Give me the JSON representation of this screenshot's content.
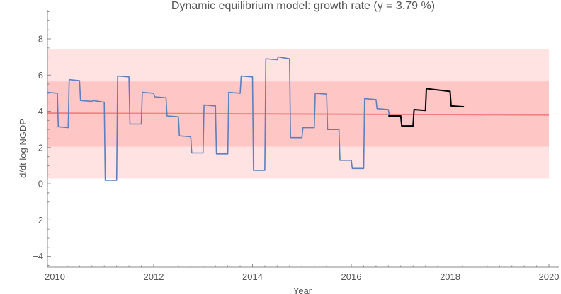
{
  "chart_data": {
    "type": "line",
    "title": "Dynamic equilibrium model: growth rate (γ = 3.79 %)",
    "xlabel": "Year",
    "ylabel": "d/dt log NGDP",
    "xlim": [
      2009.85,
      2020.2
    ],
    "ylim": [
      -4.6,
      9.6
    ],
    "x_ticks": [
      "2010",
      "2012",
      "2014",
      "2016",
      "2018",
      "2020"
    ],
    "y_ticks": [
      "-4",
      "-2",
      "0",
      "2",
      "4",
      "6",
      "8"
    ],
    "grid": false,
    "colors": {
      "data": "#5b7fbf",
      "forecast": "#000000",
      "model": "#f08080",
      "band_inner": "#ffc6c6",
      "band_outer": "#ffe3e3"
    },
    "bands": {
      "outer": [
        0.3,
        7.45
      ],
      "inner": [
        2.05,
        5.65
      ],
      "x_range": [
        2009.85,
        2020.0
      ]
    },
    "model_line": {
      "x": [
        2009.85,
        2020.0
      ],
      "y": [
        3.9,
        3.8
      ]
    },
    "series": [
      {
        "x": [
          2009.85,
          2010.05,
          2010.07,
          2010.27,
          2010.29,
          2010.5,
          2010.52,
          2010.75,
          2010.77,
          2011.0,
          2011.02,
          2011.25,
          2011.27,
          2011.5,
          2011.52,
          2011.75,
          2011.77,
          2012.0,
          2012.02,
          2012.25,
          2012.27,
          2012.5,
          2012.52,
          2012.75,
          2012.77,
          2013.0,
          2013.02,
          2013.25,
          2013.27,
          2013.5,
          2013.52,
          2013.75,
          2013.77,
          2014.0,
          2014.02,
          2014.25,
          2014.27,
          2014.5,
          2014.52,
          2014.75,
          2014.77,
          2015.0,
          2015.02,
          2015.25,
          2015.27,
          2015.5,
          2015.52,
          2015.75,
          2015.77,
          2016.0,
          2016.02,
          2016.25,
          2016.27,
          2016.5,
          2016.52,
          2016.75,
          2016.77,
          2017.0
        ],
        "y": [
          5.05,
          5.0,
          3.15,
          3.1,
          5.75,
          5.7,
          4.6,
          4.55,
          4.6,
          4.5,
          0.2,
          0.2,
          5.95,
          5.9,
          3.3,
          3.3,
          5.05,
          5.0,
          4.8,
          4.75,
          3.75,
          3.7,
          2.65,
          2.6,
          1.7,
          1.7,
          4.35,
          4.3,
          1.65,
          1.65,
          5.05,
          5.0,
          5.95,
          5.9,
          0.75,
          0.75,
          6.9,
          6.85,
          7.0,
          6.9,
          2.55,
          2.55,
          3.1,
          3.1,
          5.0,
          4.95,
          3.0,
          3.0,
          1.3,
          1.3,
          0.85,
          0.85,
          4.7,
          4.65,
          4.15,
          4.1,
          3.75,
          3.75
        ]
      },
      {
        "x": [
          2016.75,
          2017.0,
          2017.02,
          2017.25,
          2017.27,
          2017.5,
          2017.52,
          2018.0,
          2018.02,
          2018.28
        ],
        "y": [
          3.75,
          3.75,
          3.2,
          3.2,
          4.1,
          4.05,
          5.25,
          5.1,
          4.3,
          4.25
        ]
      }
    ]
  }
}
